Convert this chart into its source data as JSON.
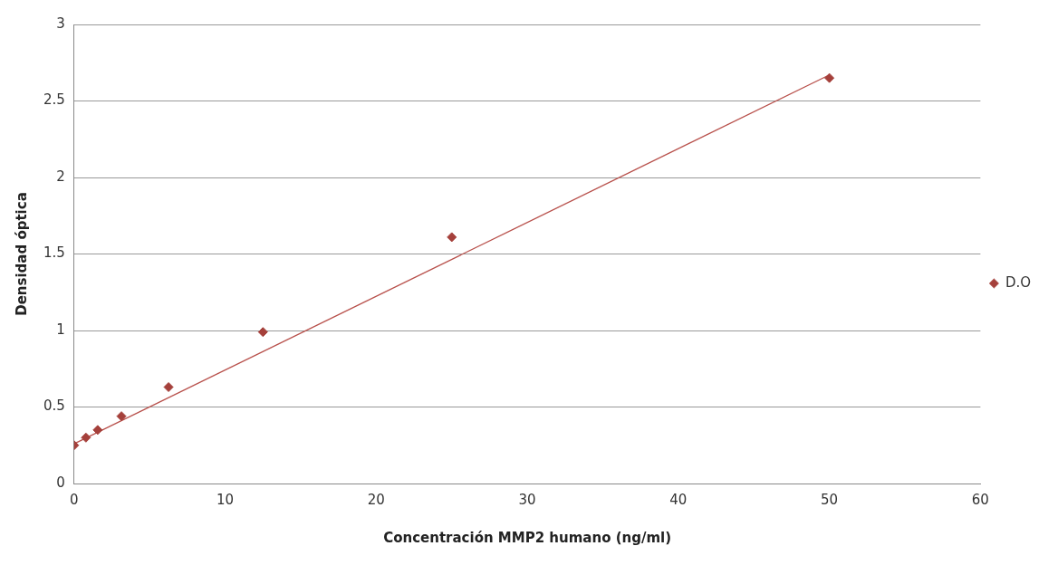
{
  "chart_data": {
    "type": "scatter",
    "xlabel": "Concentración MMP2 humano (ng/ml)",
    "ylabel": "Densidad óptica",
    "series": [
      {
        "name": "D.O",
        "color": "#a5403b",
        "x": [
          0,
          0.78,
          1.56,
          3.13,
          6.25,
          12.5,
          25,
          50
        ],
        "values": [
          0.25,
          0.3,
          0.35,
          0.44,
          0.63,
          0.99,
          1.61,
          2.65
        ]
      },
      {
        "type": "line",
        "color": "#b8504b",
        "x": [
          0,
          50
        ],
        "values": [
          0.26,
          2.67
        ],
        "marker": "none"
      }
    ],
    "xlim": [
      0,
      60
    ],
    "xticks": [
      0,
      10,
      20,
      30,
      40,
      50,
      60
    ],
    "ylim": [
      0,
      3
    ],
    "yticks": [
      0,
      0.5,
      1,
      1.5,
      2,
      2.5,
      3
    ],
    "grid": "y",
    "legend": "right",
    "marker": "diamond"
  }
}
